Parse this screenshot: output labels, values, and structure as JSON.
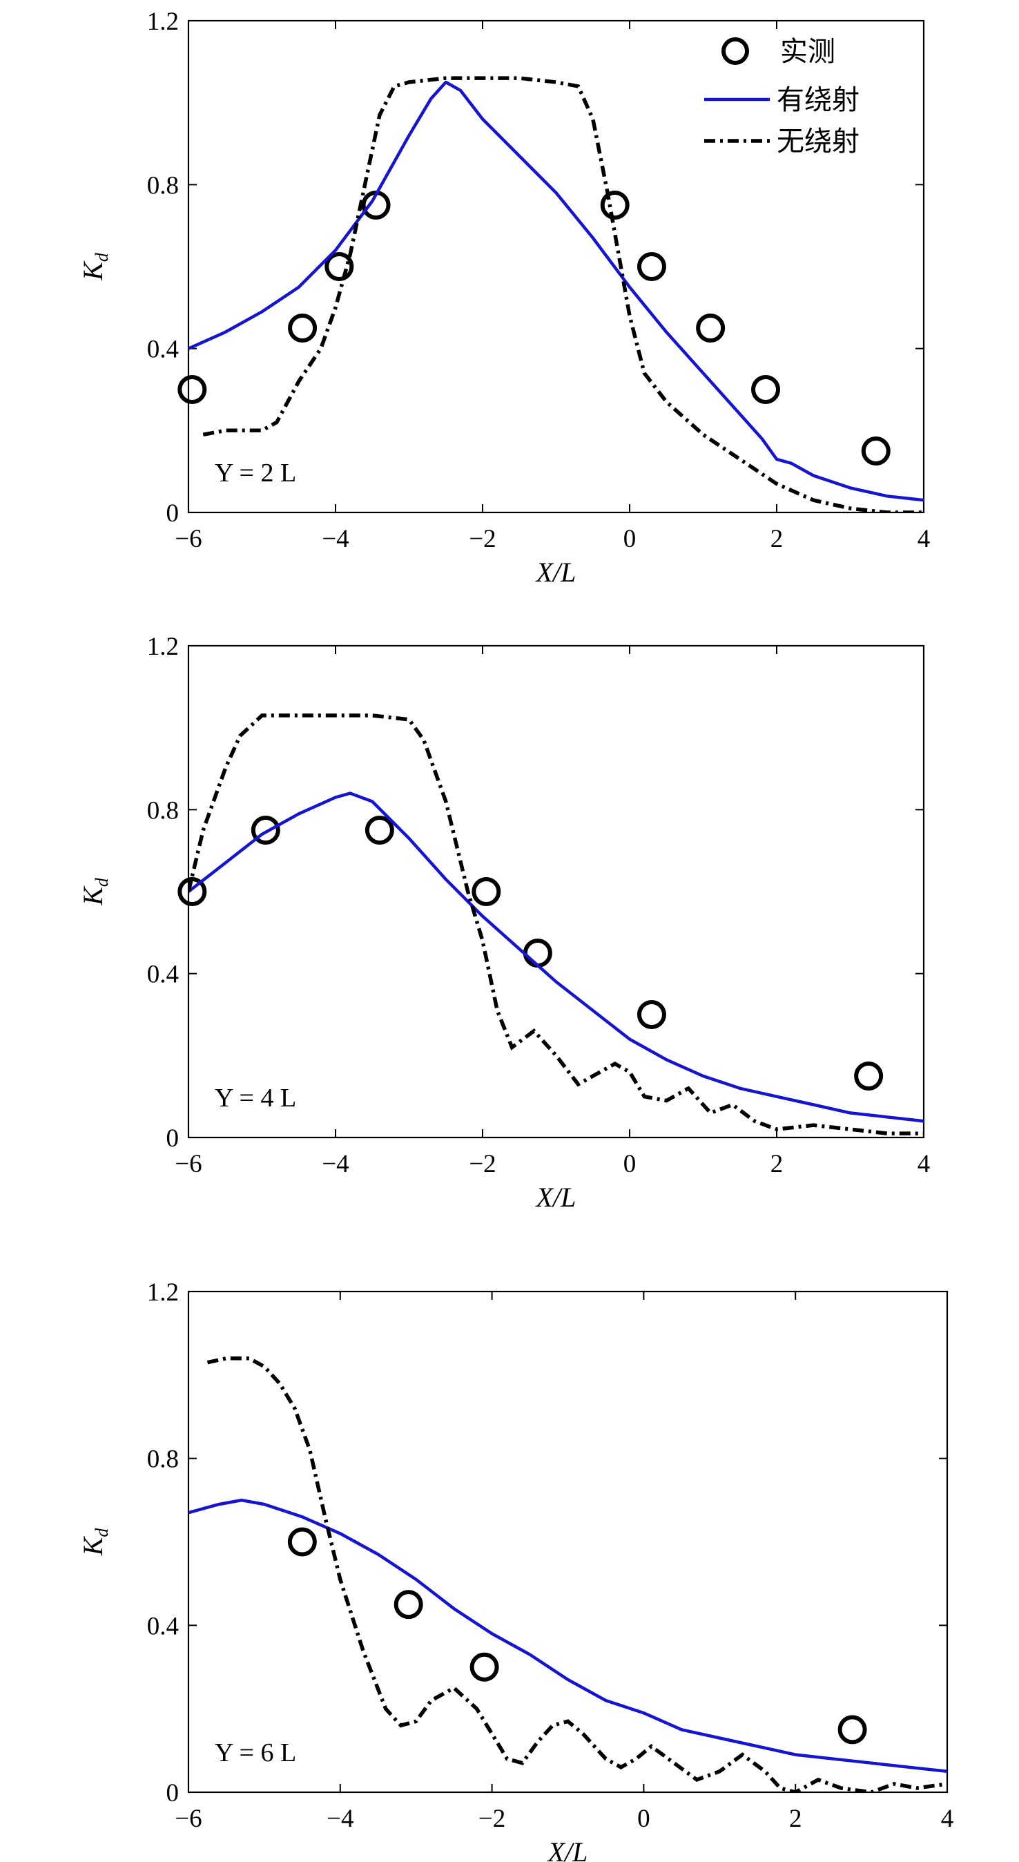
{
  "legend": {
    "measured": "实测",
    "with_diffraction": "有绕射",
    "without_diffraction": "无绕射"
  },
  "colors": {
    "with_diffraction": "#1414d2",
    "without_diffraction": "#000000",
    "measured": "#000000"
  },
  "chart_data": [
    {
      "type": "line",
      "annotation": "Y = 2 L",
      "xlabel": "X/L",
      "ylabel": "K",
      "ylabel_sub": "d",
      "xlim": [
        -6,
        4
      ],
      "ylim": [
        0,
        1.2
      ],
      "xticks": [
        -6,
        -4,
        -2,
        0,
        2,
        4
      ],
      "yticks": [
        0,
        0.4,
        0.8,
        1.2
      ],
      "xtick_labels": [
        "−6",
        "−4",
        "−2",
        "0",
        "2",
        "4"
      ],
      "ytick_labels": [
        "0",
        "0.4",
        "0.8",
        "1.2"
      ],
      "legend_position": "top-right",
      "series": [
        {
          "name": "实测",
          "style": "markers",
          "x": [
            -5.95,
            -4.45,
            -3.95,
            -3.45,
            -0.2,
            0.3,
            1.1,
            1.85,
            3.35
          ],
          "y": [
            0.3,
            0.45,
            0.6,
            0.75,
            0.75,
            0.6,
            0.45,
            0.3,
            0.15
          ]
        },
        {
          "name": "有绕射",
          "style": "solid",
          "x": [
            -6,
            -5.5,
            -5,
            -4.5,
            -4,
            -3.5,
            -3,
            -2.7,
            -2.5,
            -2.3,
            -2,
            -1.5,
            -1,
            -0.5,
            0,
            0.5,
            1,
            1.5,
            1.8,
            2,
            2.2,
            2.5,
            3,
            3.5,
            4
          ],
          "y": [
            0.4,
            0.44,
            0.49,
            0.55,
            0.64,
            0.76,
            0.92,
            1.01,
            1.05,
            1.03,
            0.96,
            0.87,
            0.78,
            0.67,
            0.55,
            0.44,
            0.34,
            0.24,
            0.18,
            0.13,
            0.12,
            0.09,
            0.06,
            0.04,
            0.03
          ]
        },
        {
          "name": "无绕射",
          "style": "dashdot",
          "x": [
            -5.8,
            -5.5,
            -5,
            -4.8,
            -4.5,
            -4.2,
            -4,
            -3.8,
            -3.6,
            -3.4,
            -3.2,
            -3,
            -2.5,
            -2,
            -1.5,
            -1,
            -0.7,
            -0.5,
            -0.3,
            -0.1,
            0,
            0.2,
            0.5,
            1,
            1.5,
            2,
            2.5,
            3,
            3.5,
            4
          ],
          "y": [
            0.19,
            0.2,
            0.2,
            0.22,
            0.32,
            0.4,
            0.5,
            0.63,
            0.8,
            0.97,
            1.04,
            1.05,
            1.06,
            1.06,
            1.06,
            1.05,
            1.04,
            0.96,
            0.78,
            0.58,
            0.48,
            0.34,
            0.27,
            0.19,
            0.13,
            0.07,
            0.03,
            0.01,
            0.0,
            0.0
          ]
        }
      ]
    },
    {
      "type": "line",
      "annotation": "Y = 4 L",
      "xlabel": "X/L",
      "ylabel": "K",
      "ylabel_sub": "d",
      "xlim": [
        -6,
        4
      ],
      "ylim": [
        0,
        1.2
      ],
      "xticks": [
        -6,
        -4,
        -2,
        0,
        2,
        4
      ],
      "yticks": [
        0,
        0.4,
        0.8,
        1.2
      ],
      "xtick_labels": [
        "−6",
        "−4",
        "−2",
        "0",
        "2",
        "4"
      ],
      "ytick_labels": [
        "0",
        "0.4",
        "0.8",
        "1.2"
      ],
      "series": [
        {
          "name": "实测",
          "style": "markers",
          "x": [
            -5.95,
            -4.95,
            -3.4,
            -1.95,
            -1.25,
            0.3,
            3.25
          ],
          "y": [
            0.6,
            0.75,
            0.75,
            0.6,
            0.45,
            0.3,
            0.15
          ]
        },
        {
          "name": "有绕射",
          "style": "solid",
          "x": [
            -6,
            -5.5,
            -5,
            -4.5,
            -4,
            -3.8,
            -3.5,
            -3,
            -2.5,
            -2,
            -1.5,
            -1,
            -0.5,
            0,
            0.5,
            1,
            1.5,
            2,
            2.5,
            3,
            3.5,
            4
          ],
          "y": [
            0.6,
            0.67,
            0.74,
            0.79,
            0.83,
            0.84,
            0.82,
            0.73,
            0.63,
            0.54,
            0.46,
            0.38,
            0.31,
            0.24,
            0.19,
            0.15,
            0.12,
            0.1,
            0.08,
            0.06,
            0.05,
            0.04
          ]
        },
        {
          "name": "无绕射",
          "style": "dashdot",
          "x": [
            -6,
            -5.8,
            -5.5,
            -5.3,
            -5,
            -4.5,
            -4,
            -3.5,
            -3,
            -2.8,
            -2.5,
            -2.2,
            -2,
            -1.8,
            -1.6,
            -1.3,
            -1,
            -0.7,
            -0.4,
            -0.2,
            0,
            0.2,
            0.5,
            0.8,
            1.1,
            1.4,
            1.7,
            2,
            2.5,
            3,
            3.5,
            4
          ],
          "y": [
            0.6,
            0.75,
            0.9,
            0.98,
            1.03,
            1.03,
            1.03,
            1.03,
            1.02,
            0.97,
            0.82,
            0.6,
            0.48,
            0.31,
            0.22,
            0.26,
            0.2,
            0.13,
            0.16,
            0.18,
            0.16,
            0.1,
            0.09,
            0.12,
            0.06,
            0.08,
            0.04,
            0.02,
            0.03,
            0.02,
            0.01,
            0.01
          ]
        }
      ]
    },
    {
      "type": "line",
      "annotation": "Y = 6 L",
      "xlabel": "X/L",
      "ylabel": "K",
      "ylabel_sub": "d",
      "xlim": [
        -6,
        4
      ],
      "ylim": [
        0,
        1.2
      ],
      "xticks": [
        -6,
        -4,
        -2,
        0,
        2,
        4
      ],
      "yticks": [
        0,
        0.4,
        0.8,
        1.2
      ],
      "xtick_labels": [
        "−6",
        "−4",
        "−2",
        "0",
        "2",
        "4"
      ],
      "ytick_labels": [
        "0",
        "0.4",
        "0.8",
        "1.2"
      ],
      "series": [
        {
          "name": "实测",
          "style": "markers",
          "x": [
            -4.5,
            -3.1,
            -2.1,
            2.75
          ],
          "y": [
            0.6,
            0.45,
            0.3,
            0.15
          ]
        },
        {
          "name": "有绕射",
          "style": "solid",
          "x": [
            -6,
            -5.6,
            -5.3,
            -5,
            -4.5,
            -4,
            -3.5,
            -3,
            -2.5,
            -2,
            -1.5,
            -1,
            -0.5,
            0,
            0.5,
            1,
            1.5,
            2,
            2.5,
            3,
            3.5,
            4
          ],
          "y": [
            0.67,
            0.69,
            0.7,
            0.69,
            0.66,
            0.62,
            0.57,
            0.51,
            0.44,
            0.38,
            0.33,
            0.27,
            0.22,
            0.19,
            0.15,
            0.13,
            0.11,
            0.09,
            0.08,
            0.07,
            0.06,
            0.05
          ]
        },
        {
          "name": "无绕射",
          "style": "dashdot",
          "x": [
            -5.75,
            -5.5,
            -5.2,
            -5,
            -4.8,
            -4.6,
            -4.4,
            -4.2,
            -4,
            -3.7,
            -3.4,
            -3.2,
            -3,
            -2.8,
            -2.5,
            -2.2,
            -2,
            -1.8,
            -1.6,
            -1.4,
            -1.2,
            -1,
            -0.8,
            -0.5,
            -0.3,
            -0.1,
            0.1,
            0.4,
            0.7,
            1,
            1.3,
            1.6,
            1.8,
            2,
            2.3,
            2.6,
            3,
            3.3,
            3.6,
            4
          ],
          "y": [
            1.03,
            1.04,
            1.04,
            1.02,
            0.98,
            0.92,
            0.82,
            0.66,
            0.51,
            0.34,
            0.2,
            0.16,
            0.17,
            0.22,
            0.25,
            0.2,
            0.14,
            0.08,
            0.07,
            0.12,
            0.16,
            0.17,
            0.14,
            0.08,
            0.06,
            0.08,
            0.11,
            0.07,
            0.03,
            0.05,
            0.09,
            0.05,
            0.01,
            0.0,
            0.03,
            0.01,
            0.0,
            0.02,
            0.01,
            0.02
          ]
        }
      ]
    }
  ]
}
